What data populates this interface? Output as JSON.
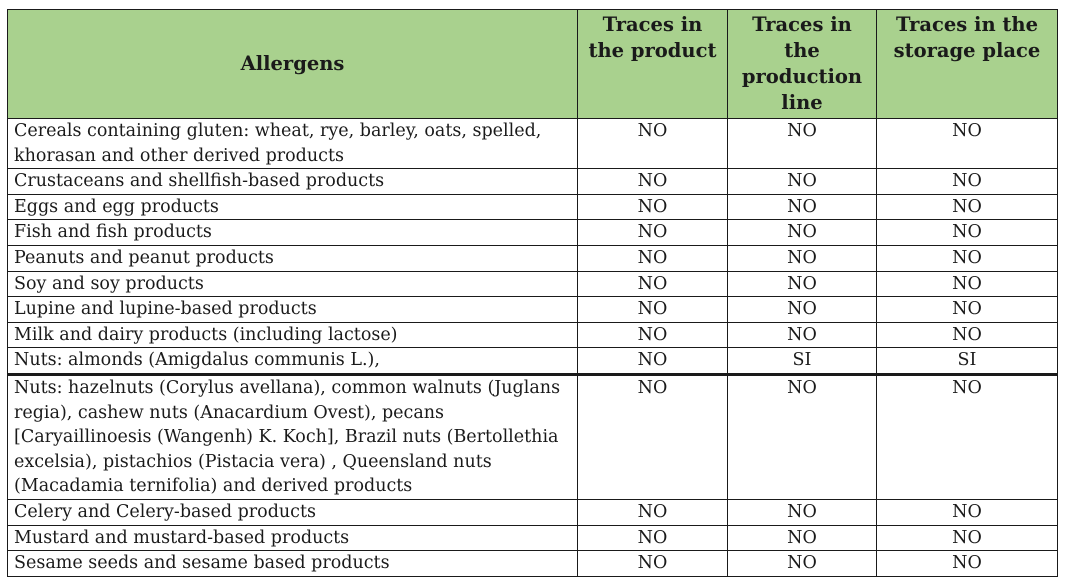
{
  "table": {
    "headers": {
      "allergens": "Allergens",
      "product": "Traces in the product",
      "production_line": "Traces in the production line",
      "storage": "Traces in the storage place"
    },
    "rows": [
      {
        "allergen": "Cereals containing gluten: wheat, rye, barley, oats, spelled, khorasan and other derived products",
        "product": "NO",
        "line": "NO",
        "storage": "NO"
      },
      {
        "allergen": "Crustaceans and shellfish-based products",
        "product": "NO",
        "line": "NO",
        "storage": "NO"
      },
      {
        "allergen": "Eggs and egg products",
        "product": "NO",
        "line": "NO",
        "storage": "NO"
      },
      {
        "allergen": "Fish and fish products",
        "product": "NO",
        "line": "NO",
        "storage": "NO"
      },
      {
        "allergen": "Peanuts and peanut products",
        "product": "NO",
        "line": "NO",
        "storage": "NO"
      },
      {
        "allergen": "Soy and soy products",
        "product": "NO",
        "line": "NO",
        "storage": "NO"
      },
      {
        "allergen": "Lupine and lupine-based products",
        "product": "NO",
        "line": "NO",
        "storage": "NO"
      },
      {
        "allergen": "Milk and dairy products (including lactose)",
        "product": "NO",
        "line": "NO",
        "storage": "NO"
      },
      {
        "allergen": "Nuts: almonds (Amigdalus communis L.),",
        "product": "NO",
        "line": "SI",
        "storage": "SI"
      },
      {
        "allergen": "Nuts: hazelnuts (Corylus avellana), common walnuts (Juglans regia), cashew nuts (Anacardium Ovest), pecans [Caryaillinoesis (Wangenh) K. Koch], Brazil nuts (Bertollethia excelsia), pistachios (Pistacia vera) , Queensland nuts (Macadamia ternifolia) and derived products",
        "product": "NO",
        "line": "NO",
        "storage": "NO"
      },
      {
        "allergen": "Celery and Celery-based products",
        "product": "NO",
        "line": "NO",
        "storage": "NO"
      },
      {
        "allergen": "Mustard and mustard-based products",
        "product": "NO",
        "line": "NO",
        "storage": "NO"
      },
      {
        "allergen": "Sesame seeds and sesame based products",
        "product": "NO",
        "line": "NO",
        "storage": "NO"
      }
    ]
  }
}
